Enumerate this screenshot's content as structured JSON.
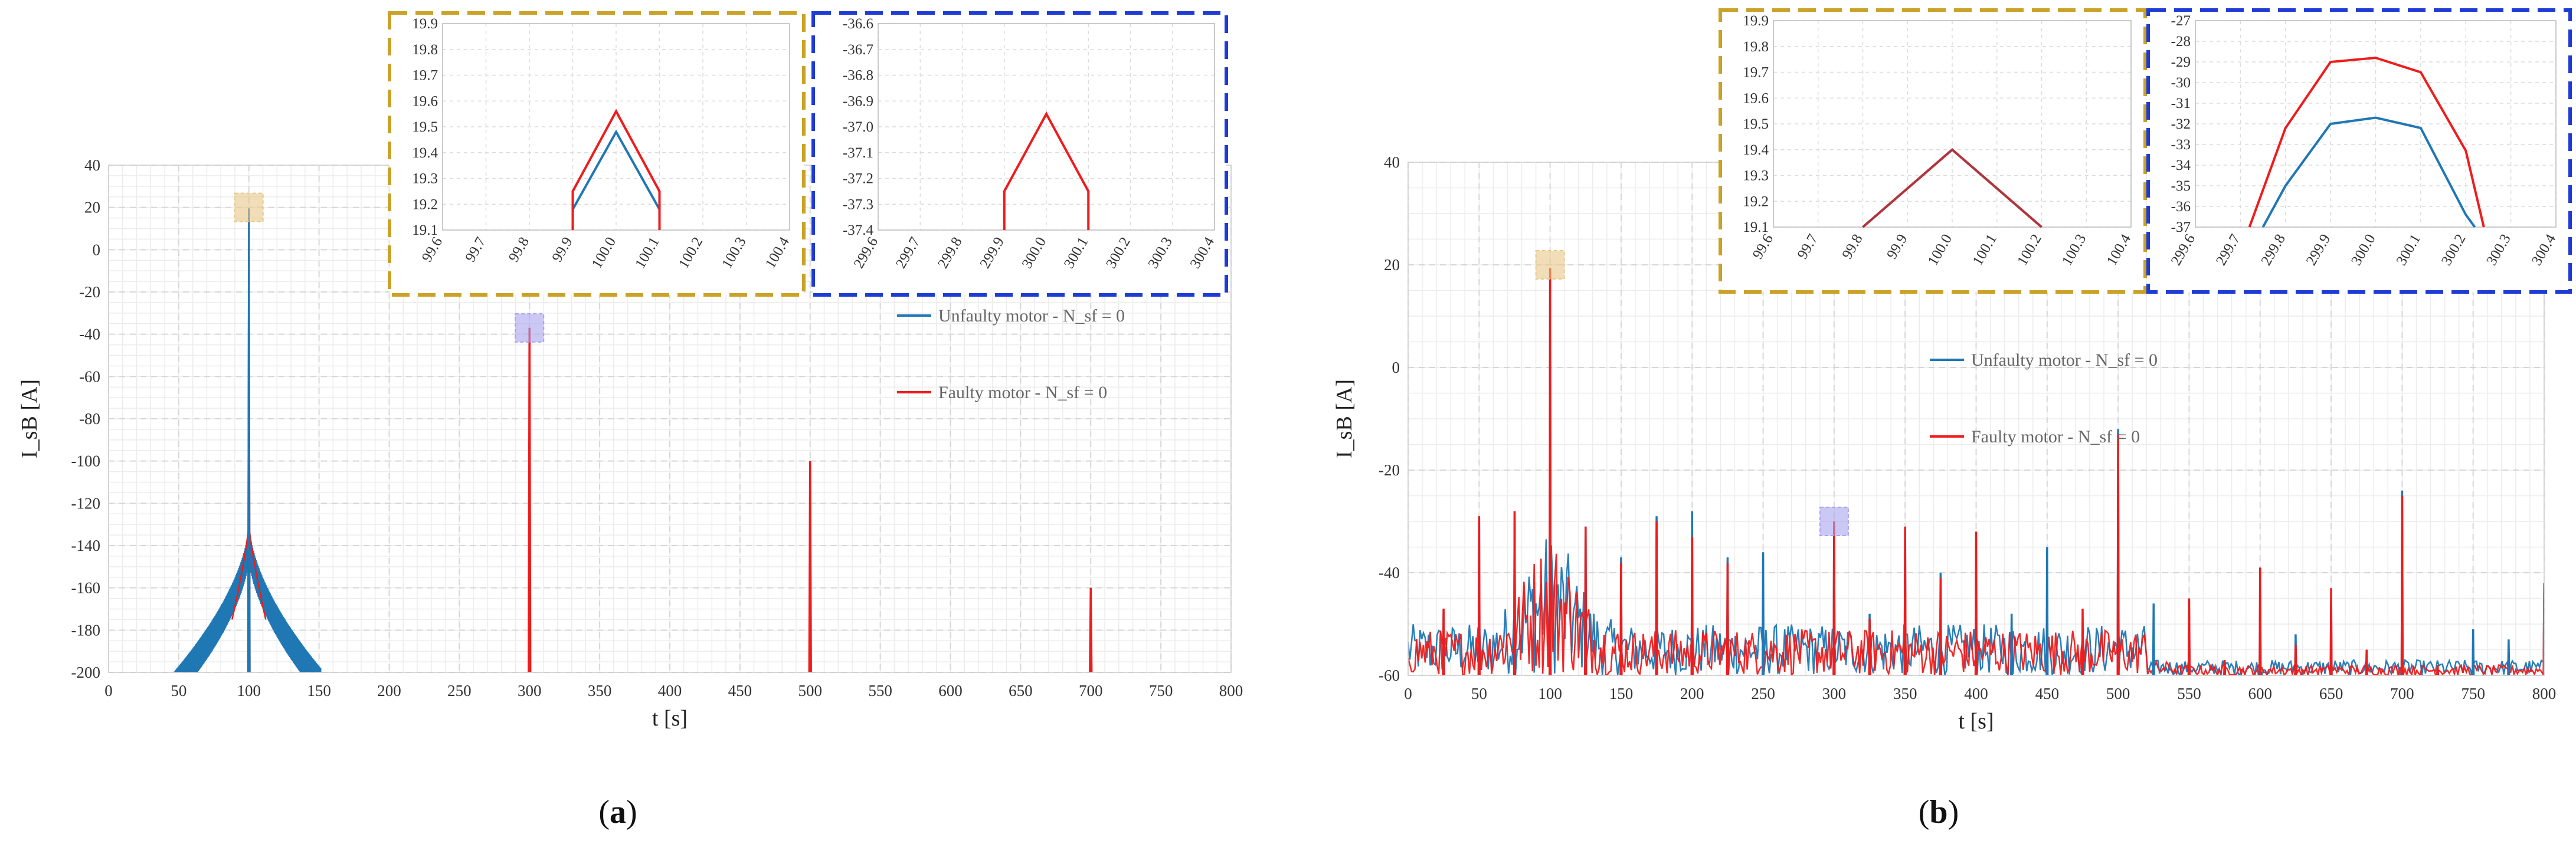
{
  "panels": [
    {
      "label": "(a)",
      "label_bold": "a"
    },
    {
      "label": "(b)",
      "label_bold": "b"
    }
  ],
  "chart_data": [
    {
      "type": "line",
      "panel": "(a)",
      "xlabel": "t [s]",
      "ylabel": "I_sB [A]",
      "xlim": [
        0,
        800
      ],
      "ylim": [
        -200,
        40
      ],
      "xticks": [
        0,
        50,
        100,
        150,
        200,
        250,
        300,
        350,
        400,
        450,
        500,
        550,
        600,
        650,
        700,
        750,
        800
      ],
      "yticks": [
        40,
        20,
        0,
        -20,
        -40,
        -60,
        -80,
        -100,
        -120,
        -140,
        -160,
        -180,
        -200
      ],
      "grid": true,
      "legend_position": "right",
      "series": [
        {
          "name": "Unfaulty motor - N_sf = 0",
          "color": "#1f77b4",
          "description": "single spike at 100 s with decaying envelope",
          "peaks": [
            {
              "x": 100,
              "y": 19.48
            }
          ]
        },
        {
          "name": "Faulty motor - N_sf = 0",
          "color": "#ee1c1c",
          "peaks": [
            {
              "x": 100,
              "y": 19.56
            },
            {
              "x": 300,
              "y": -36.95
            },
            {
              "x": 500,
              "y": -100
            },
            {
              "x": 700,
              "y": -160
            }
          ]
        }
      ],
      "markers": [
        {
          "x": 100,
          "y": 20,
          "color": "#e8c88a"
        },
        {
          "x": 300,
          "y": -37,
          "color": "#a9a3ee"
        }
      ],
      "insets": [
        {
          "border_color": "#c9a227",
          "xlim": [
            99.6,
            100.4
          ],
          "ylim": [
            19.1,
            19.9
          ],
          "xticks": [
            "99.6",
            "99.7",
            "99.8",
            "99.9",
            "100.0",
            "100.1",
            "100.2",
            "100.3",
            "100.4"
          ],
          "yticks": [
            "19.9",
            "19.8",
            "19.7",
            "19.6",
            "19.5",
            "19.4",
            "19.3",
            "19.2",
            "19.1"
          ],
          "series": [
            {
              "color": "#1f77b4",
              "x": [
                99.9,
                99.9,
                100.0,
                100.1,
                100.1
              ],
              "y": [
                19.1,
                19.18,
                19.48,
                19.18,
                19.1
              ]
            },
            {
              "color": "#ee1c1c",
              "x": [
                99.9,
                99.9,
                100.0,
                100.1,
                100.1
              ],
              "y": [
                19.1,
                19.25,
                19.56,
                19.25,
                19.1
              ]
            }
          ]
        },
        {
          "border_color": "#1f3bd6",
          "xlim": [
            299.6,
            300.4
          ],
          "ylim": [
            -37.4,
            -36.6
          ],
          "xticks": [
            "299.6",
            "299.7",
            "299.8",
            "299.9",
            "300.0",
            "300.1",
            "300.2",
            "300.3",
            "300.4"
          ],
          "yticks": [
            "-36.6",
            "-36.7",
            "-36.8",
            "-36.9",
            "-37.0",
            "-37.1",
            "-37.2",
            "-37.3",
            "-37.4"
          ],
          "series": [
            {
              "color": "#ee1c1c",
              "x": [
                299.9,
                299.9,
                300.0,
                300.1,
                300.1
              ],
              "y": [
                -37.4,
                -37.25,
                -36.95,
                -37.25,
                -37.4
              ]
            }
          ]
        }
      ]
    },
    {
      "type": "line",
      "panel": "(b)",
      "xlabel": "t [s]",
      "ylabel": "I_sB [A]",
      "xlim": [
        0,
        800
      ],
      "ylim": [
        -60,
        40
      ],
      "xticks": [
        0,
        50,
        100,
        150,
        200,
        250,
        300,
        350,
        400,
        450,
        500,
        550,
        600,
        650,
        700,
        750,
        800
      ],
      "yticks": [
        40,
        20,
        0,
        -20,
        -40,
        -60
      ],
      "grid": true,
      "legend_position": "right",
      "series": [
        {
          "name": "Unfaulty motor - N_sf = 0",
          "color": "#1f77b4",
          "peaks": [
            {
              "x": 25,
              "y": -47
            },
            {
              "x": 50,
              "y": -29
            },
            {
              "x": 75,
              "y": -28
            },
            {
              "x": 100,
              "y": 19.4
            },
            {
              "x": 125,
              "y": -31
            },
            {
              "x": 150,
              "y": -37
            },
            {
              "x": 175,
              "y": -29
            },
            {
              "x": 200,
              "y": -28
            },
            {
              "x": 225,
              "y": -37
            },
            {
              "x": 250,
              "y": -36
            },
            {
              "x": 300,
              "y": -31
            },
            {
              "x": 325,
              "y": -48
            },
            {
              "x": 350,
              "y": -32
            },
            {
              "x": 375,
              "y": -40
            },
            {
              "x": 400,
              "y": -46
            },
            {
              "x": 425,
              "y": -48
            },
            {
              "x": 450,
              "y": -35
            },
            {
              "x": 500,
              "y": -12
            },
            {
              "x": 525,
              "y": -46
            },
            {
              "x": 550,
              "y": -47
            },
            {
              "x": 600,
              "y": -46
            },
            {
              "x": 625,
              "y": -52
            },
            {
              "x": 650,
              "y": -46
            },
            {
              "x": 700,
              "y": -24
            },
            {
              "x": 750,
              "y": -51
            },
            {
              "x": 775,
              "y": -53
            },
            {
              "x": 800,
              "y": -44
            }
          ]
        },
        {
          "name": "Faulty motor - N_sf = 0",
          "color": "#ee1c1c",
          "peaks": [
            {
              "x": 25,
              "y": -47
            },
            {
              "x": 50,
              "y": -29
            },
            {
              "x": 75,
              "y": -28
            },
            {
              "x": 100,
              "y": 19.4
            },
            {
              "x": 125,
              "y": -31
            },
            {
              "x": 150,
              "y": -38
            },
            {
              "x": 175,
              "y": -30
            },
            {
              "x": 200,
              "y": -33
            },
            {
              "x": 225,
              "y": -38
            },
            {
              "x": 300,
              "y": -30
            },
            {
              "x": 325,
              "y": -49
            },
            {
              "x": 350,
              "y": -31
            },
            {
              "x": 375,
              "y": -41
            },
            {
              "x": 400,
              "y": -32
            },
            {
              "x": 475,
              "y": -47
            },
            {
              "x": 500,
              "y": -13
            },
            {
              "x": 550,
              "y": -45
            },
            {
              "x": 575,
              "y": -57
            },
            {
              "x": 600,
              "y": -39
            },
            {
              "x": 625,
              "y": -54
            },
            {
              "x": 650,
              "y": -43
            },
            {
              "x": 675,
              "y": -55
            },
            {
              "x": 700,
              "y": -25
            },
            {
              "x": 725,
              "y": -58
            },
            {
              "x": 800,
              "y": -42
            }
          ]
        }
      ],
      "markers": [
        {
          "x": 100,
          "y": 20,
          "color": "#e8c88a"
        },
        {
          "x": 300,
          "y": -30,
          "color": "#a9a3ee"
        }
      ],
      "insets": [
        {
          "border_color": "#c9a227",
          "xlim": [
            99.6,
            100.4
          ],
          "ylim": [
            19.1,
            19.9
          ],
          "xticks": [
            "99.6",
            "99.7",
            "99.8",
            "99.9",
            "100.0",
            "100.1",
            "100.2",
            "100.3",
            "100.4"
          ],
          "yticks": [
            "19.9",
            "19.8",
            "19.7",
            "19.6",
            "19.5",
            "19.4",
            "19.3",
            "19.2",
            "19.1"
          ],
          "series": [
            {
              "color": "#1f77b4",
              "x": [
                99.8,
                100.0,
                100.2
              ],
              "y": [
                19.1,
                19.4,
                19.1
              ]
            },
            {
              "color": "#b5343a",
              "x": [
                99.8,
                100.0,
                100.2
              ],
              "y": [
                19.1,
                19.4,
                19.1
              ]
            }
          ]
        },
        {
          "border_color": "#1f3bd6",
          "xlim": [
            299.6,
            300.4
          ],
          "ylim": [
            -37,
            -27
          ],
          "xticks": [
            "299.6",
            "299.7",
            "299.8",
            "299.9",
            "300.0",
            "300.1",
            "300.2",
            "300.3",
            "300.4"
          ],
          "yticks": [
            "-27",
            "-28",
            "-29",
            "-30",
            "-31",
            "-32",
            "-33",
            "-34",
            "-35",
            "-36",
            "-37"
          ],
          "series": [
            {
              "color": "#1f77b4",
              "x": [
                299.75,
                299.8,
                299.9,
                300.0,
                300.1,
                300.2,
                300.22
              ],
              "y": [
                -37,
                -35,
                -32,
                -31.7,
                -32.2,
                -36.4,
                -37
              ]
            },
            {
              "color": "#ee1c1c",
              "x": [
                299.72,
                299.8,
                299.9,
                300.0,
                300.1,
                300.2,
                300.24
              ],
              "y": [
                -37,
                -32.2,
                -29,
                -28.8,
                -29.5,
                -33.3,
                -37
              ]
            }
          ]
        }
      ]
    }
  ]
}
